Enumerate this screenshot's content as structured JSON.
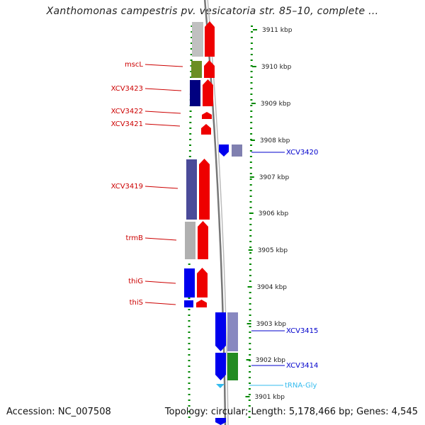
{
  "title": "Xanthomonas campestris pv. vesicatoria str. 85–10, complete ...",
  "accession": "Accession: NC_007508",
  "topology": "Topology: circular; Length: 5,178,466 bp; Genes: 4,545",
  "colors": {
    "forward_label": "#cc0000",
    "reverse_label": "#0000cc",
    "trna_label": "#33bbee",
    "backbone": "#888888",
    "tick": "#008800"
  },
  "scale_labels": [
    "3911 kbp",
    "3910 kbp",
    "3909 kbp",
    "3908 kbp",
    "3907 kbp",
    "3906 kbp",
    "3905 kbp",
    "3904 kbp",
    "3903 kbp",
    "3902 kbp",
    "3901 kbp"
  ],
  "forward_genes": [
    {
      "label": "",
      "cog": "#c0c0c0"
    },
    {
      "label": "mscL",
      "cog": "#6b8e23"
    },
    {
      "label": "XCV3423",
      "cog": "#000080"
    },
    {
      "label": "XCV3422",
      "cog": ""
    },
    {
      "label": "XCV3421",
      "cog": ""
    },
    {
      "label": "XCV3419",
      "cog": "#4b4b99"
    },
    {
      "label": "trmB",
      "cog": "#b0b0b0"
    },
    {
      "label": "thiG",
      "cog": "#0000ee"
    },
    {
      "label": "thiS",
      "cog": "#0000ee"
    }
  ],
  "reverse_genes": [
    {
      "label": "XCV3420",
      "cog": "#8080b0"
    },
    {
      "label": "XCV3415",
      "cog": "#8888c0"
    },
    {
      "label": "XCV3414",
      "cog": "#228b22"
    },
    {
      "label": "",
      "cog": ""
    }
  ],
  "trna": [
    {
      "label": "tRNA-Gly"
    }
  ]
}
